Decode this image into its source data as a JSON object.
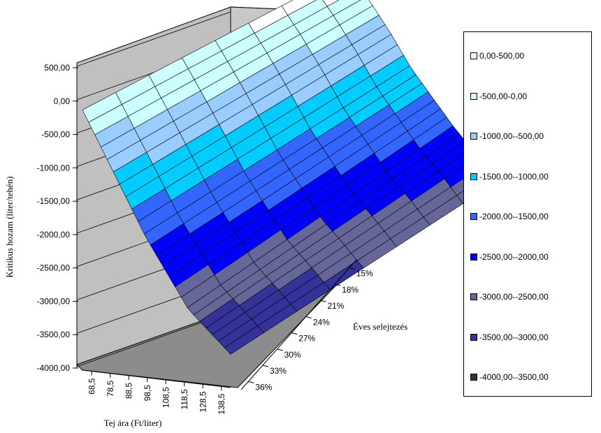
{
  "chart_data": {
    "type": "surface",
    "ylabel": "Kritikus hozam (liter/tehén)",
    "xlabel": "Tej ára (Ft/liter)",
    "zlabel": "Éves selejtezés",
    "z_axis": {
      "min": -4000,
      "max": 500,
      "step": 500,
      "tick_labels": [
        "500,00",
        "0,00",
        "-500,00",
        "-1000,00",
        "-1500,00",
        "-2000,00",
        "-2500,00",
        "-3000,00",
        "-3500,00",
        "-4000,00"
      ]
    },
    "x_categories": [
      "68,5",
      "78,5",
      "88,5",
      "98,5",
      "108,5",
      "118,5",
      "128,5",
      "138,5"
    ],
    "depth_categories": [
      "15%",
      "18%",
      "21%",
      "24%",
      "27%",
      "30%",
      "33%",
      "36%"
    ],
    "legend": [
      {
        "label": "0,00-500,00",
        "color": "#ffffff"
      },
      {
        "label": "-500,00-0,00",
        "color": "#ccffff"
      },
      {
        "label": "-1000,00--500,00",
        "color": "#99ccff"
      },
      {
        "label": "-1500,00--1000,00",
        "color": "#00ccff"
      },
      {
        "label": "-2000,00--1500,00",
        "color": "#3366ff"
      },
      {
        "label": "-2500,00--2000,00",
        "color": "#0000ff"
      },
      {
        "label": "-3000,00--2500,00",
        "color": "#666699"
      },
      {
        "label": "-3500,00--3000,00",
        "color": "#333399"
      },
      {
        "label": "-4000,00--3500,00",
        "color": "#333333"
      }
    ],
    "values_by_price": [
      {
        "x": "68,5",
        "min_culling": 200,
        "max_culling": -100
      },
      {
        "x": "78,5",
        "min_culling": -200,
        "max_culling": -700
      },
      {
        "x": "88,5",
        "min_culling": -650,
        "max_culling": -1300
      },
      {
        "x": "98,5",
        "min_culling": -1150,
        "max_culling": -1900
      },
      {
        "x": "108,5",
        "min_culling": -1550,
        "max_culling": -2400
      },
      {
        "x": "118,5",
        "min_culling": -1950,
        "max_culling": -2900
      },
      {
        "x": "128,5",
        "min_culling": -2300,
        "max_culling": -3200
      },
      {
        "x": "138,5",
        "min_culling": -2700,
        "max_culling": -3500
      }
    ]
  }
}
